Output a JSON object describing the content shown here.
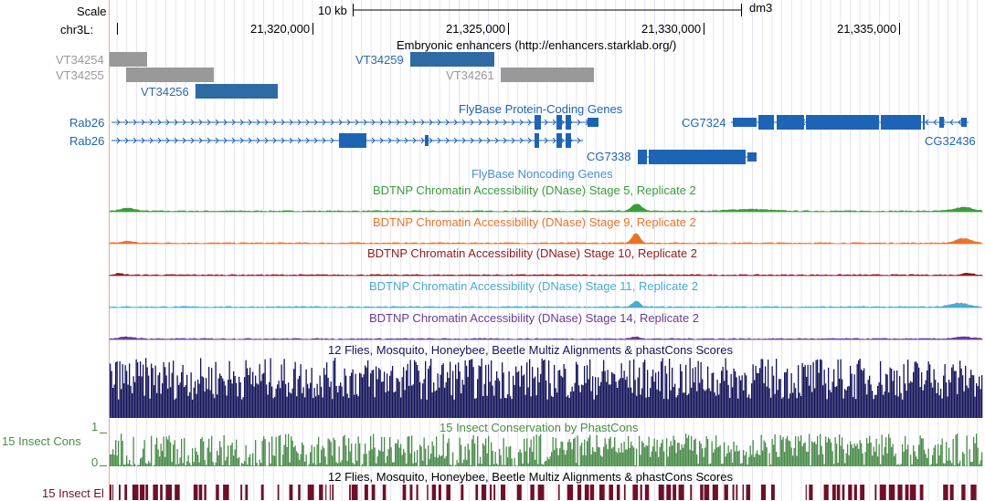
{
  "header": {
    "scale_label": "Scale",
    "scale_bar_label": "10 kb",
    "assembly": "dm3",
    "chrom_label": "chr3L:",
    "positions": [
      "21,320,000",
      "21,325,000",
      "21,330,000",
      "21,335,000"
    ]
  },
  "tracks": {
    "enhancers": {
      "title": "Embryonic enhancers (http://enhancers.starklab.org/)",
      "items": [
        "VT34254",
        "VT34255",
        "VT34256",
        "VT34259",
        "VT34261"
      ]
    },
    "genes": {
      "title": "FlyBase Protein-Coding Genes",
      "items": [
        "Rab26",
        "Rab26",
        "CG7324",
        "CG32436",
        "CG7338"
      ]
    },
    "noncoding": {
      "title": "FlyBase Noncoding Genes"
    },
    "dnase": [
      {
        "title": "BDTNP Chromatin Accessibility (DNase) Stage 5, Replicate 2",
        "color": "#3c9c3c"
      },
      {
        "title": "BDTNP Chromatin Accessibility (DNase) Stage 9, Replicate 2",
        "color": "#e8742a"
      },
      {
        "title": "BDTNP Chromatin Accessibility (DNase) Stage 10, Replicate 2",
        "color": "#8c1c1c"
      },
      {
        "title": "BDTNP Chromatin Accessibility (DNase) Stage 11, Replicate 2",
        "color": "#4aaad2"
      },
      {
        "title": "BDTNP Chromatin Accessibility (DNase) Stage 14, Replicate 2",
        "color": "#6a3c96"
      }
    ],
    "multiz": {
      "title": "12 Flies, Mosquito, Honeybee, Beetle Multiz Alignments & phastCons Scores"
    },
    "phastcons": {
      "title": "15 Insect Conservation by PhastCons",
      "side_label": "15 Insect Cons",
      "axis_max": "1",
      "axis_min": "0"
    },
    "elements": {
      "title": "12 Flies, Mosquito, Honeybee, Beetle Multiz Alignments & phastCons Scores",
      "side_label": "15 Insect El"
    }
  },
  "colors": {
    "gene_blue": "#1e64b4",
    "enh_blue": "#2f6aa5",
    "enh_gray": "#999999",
    "multiz_navy": "#14145a",
    "cons_green": "#4a8c4a",
    "el_red": "#6e1028"
  }
}
